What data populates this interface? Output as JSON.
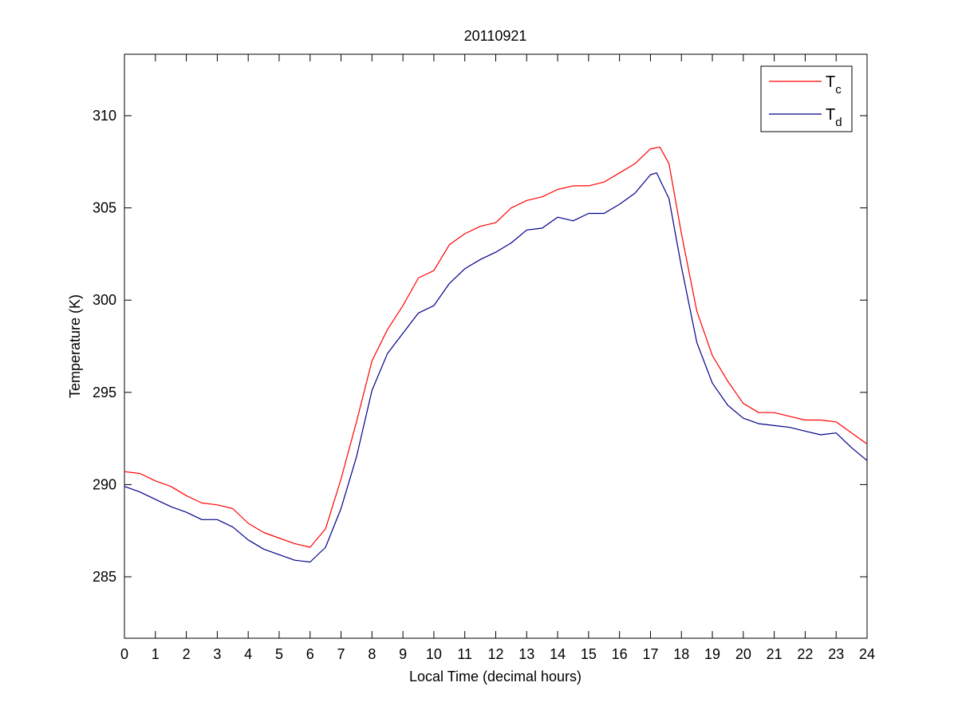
{
  "chart_data": {
    "type": "line",
    "title": "20110921",
    "xlabel": "Local Time (decimal hours)",
    "ylabel": "Temperature (K)",
    "xlim": [
      0,
      24
    ],
    "ylim": [
      281.67,
      313.33
    ],
    "xticks": [
      0,
      1,
      2,
      3,
      4,
      5,
      6,
      7,
      8,
      9,
      10,
      11,
      12,
      13,
      14,
      15,
      16,
      17,
      18,
      19,
      20,
      21,
      22,
      23,
      24
    ],
    "yticks": [
      285,
      290,
      295,
      300,
      305,
      310
    ],
    "grid": false,
    "legend_position": "top-right",
    "series": [
      {
        "name": "T",
        "subscript": "c",
        "color": "#ff0000",
        "x": [
          0,
          0.5,
          1,
          1.5,
          2,
          2.5,
          3,
          3.5,
          4,
          4.5,
          5,
          5.5,
          6,
          6.5,
          7,
          7.5,
          8,
          8.5,
          9,
          9.5,
          10,
          10.5,
          11,
          11.5,
          12,
          12.5,
          13,
          13.5,
          14,
          14.5,
          15,
          15.5,
          16,
          16.5,
          17,
          17.3,
          17.6,
          18,
          18.5,
          19,
          19.5,
          20,
          20.5,
          21,
          21.5,
          22,
          22.5,
          23,
          23.5,
          24
        ],
        "y": [
          290.7,
          290.6,
          290.2,
          289.9,
          289.4,
          289.0,
          288.9,
          288.7,
          287.9,
          287.4,
          287.1,
          286.8,
          286.6,
          287.6,
          290.3,
          293.4,
          296.7,
          298.4,
          299.7,
          301.2,
          301.6,
          303.0,
          303.6,
          304.0,
          304.2,
          305.0,
          305.4,
          305.6,
          306.0,
          306.2,
          306.2,
          306.4,
          306.9,
          307.4,
          308.2,
          308.3,
          307.4,
          303.6,
          299.4,
          297.0,
          295.6,
          294.4,
          293.9,
          293.9,
          293.7,
          293.5,
          293.5,
          293.4,
          292.8,
          292.2
        ]
      },
      {
        "name": "T",
        "subscript": "d",
        "color": "#00008b",
        "x": [
          0,
          0.5,
          1,
          1.5,
          2,
          2.5,
          3,
          3.5,
          4,
          4.5,
          5,
          5.5,
          6,
          6.5,
          7,
          7.5,
          8,
          8.5,
          9,
          9.5,
          10,
          10.5,
          11,
          11.5,
          12,
          12.5,
          13,
          13.5,
          14,
          14.5,
          15,
          15.5,
          16,
          16.5,
          17,
          17.2,
          17.6,
          18,
          18.5,
          19,
          19.5,
          20,
          20.5,
          21,
          21.5,
          22,
          22.5,
          23,
          23.5,
          24
        ],
        "y": [
          289.9,
          289.6,
          289.2,
          288.8,
          288.5,
          288.1,
          288.1,
          287.7,
          287.0,
          286.5,
          286.2,
          285.9,
          285.8,
          286.6,
          288.7,
          291.5,
          295.1,
          297.1,
          298.2,
          299.3,
          299.7,
          300.9,
          301.7,
          302.2,
          302.6,
          303.1,
          303.8,
          303.9,
          304.5,
          304.3,
          304.7,
          304.7,
          305.2,
          305.8,
          306.8,
          306.9,
          305.5,
          301.8,
          297.7,
          295.5,
          294.3,
          293.6,
          293.3,
          293.2,
          293.1,
          292.9,
          292.7,
          292.8,
          292.0,
          291.3
        ]
      }
    ]
  }
}
